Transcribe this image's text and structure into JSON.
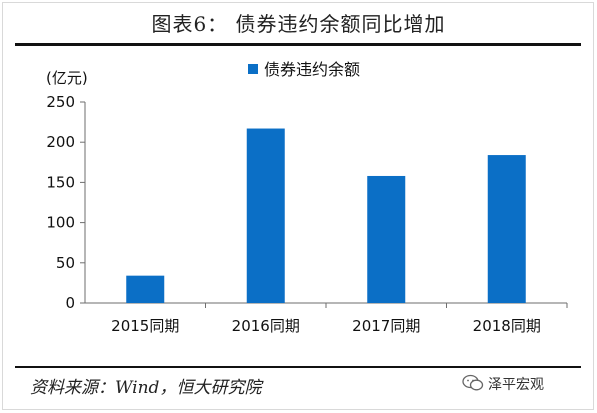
{
  "chart_data": {
    "type": "bar",
    "title": "图表6：  债券违约余额同比增加",
    "ylabel": "(亿元)",
    "categories": [
      "2015同期",
      "2016同期",
      "2017同期",
      "2018同期"
    ],
    "series": [
      {
        "name": "债券违约余额",
        "values": [
          34,
          217,
          158,
          184
        ],
        "color": "#0b6fc6"
      }
    ],
    "ylim": [
      0,
      250
    ],
    "yticks": [
      0,
      50,
      100,
      150,
      200,
      250
    ],
    "grid": false,
    "legend_position": "top-center"
  },
  "source": "资料来源：Wind，恒大研究院",
  "watermark": "泽平宏观"
}
